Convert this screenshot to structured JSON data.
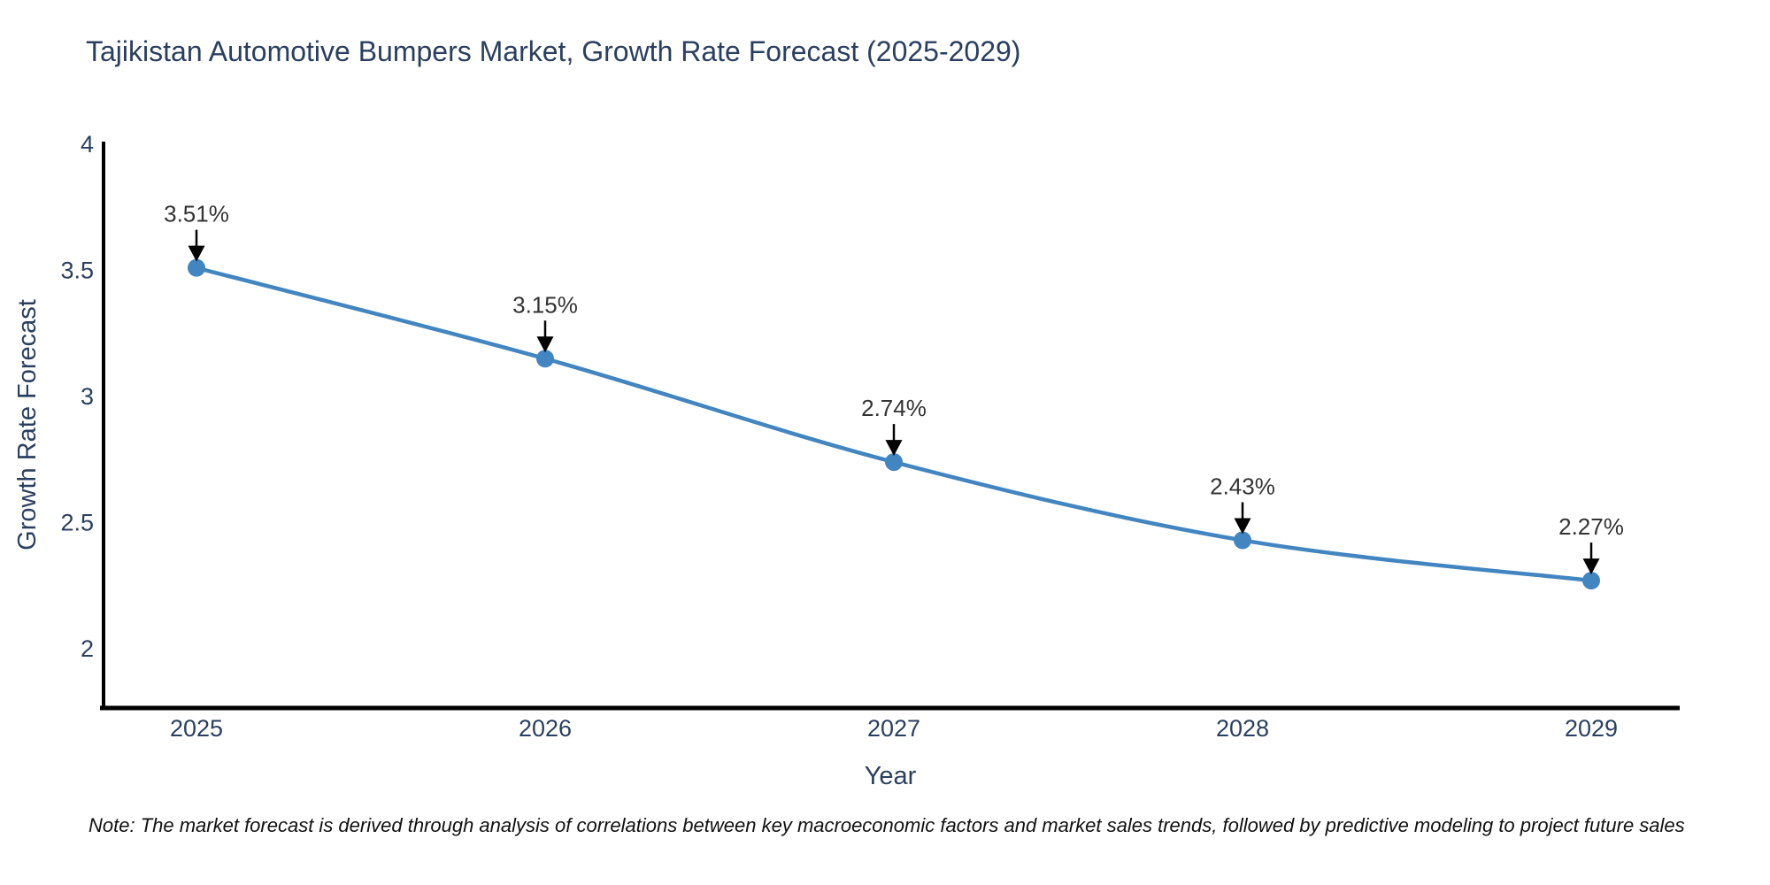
{
  "note": "Note: The market forecast is derived through analysis of correlations between key macroeconomic factors and market sales trends, followed by predictive modeling to project future sales",
  "chart_data": {
    "type": "line",
    "title": "Tajikistan Automotive Bumpers Market, Growth Rate Forecast (2025-2029)",
    "xlabel": "Year",
    "ylabel": "Growth Rate Forecast",
    "categories": [
      "2025",
      "2026",
      "2027",
      "2028",
      "2029"
    ],
    "series": [
      {
        "name": "Growth Rate Forecast",
        "values": [
          3.51,
          3.15,
          2.74,
          2.43,
          2.27
        ]
      }
    ],
    "point_labels": [
      "3.51%",
      "3.15%",
      "2.74%",
      "2.43%",
      "2.27%"
    ],
    "y_ticks": [
      "4",
      "3.5",
      "3",
      "2.5",
      "2"
    ],
    "y_tick_values": [
      4,
      3.5,
      3,
      2.5,
      2
    ],
    "ylim": [
      1.765,
      4.0105
    ],
    "grid": false,
    "legend_position": "none",
    "line_shape": "spline",
    "annotation_arrows": true,
    "colors": {
      "line": "#4285c0",
      "marker": "#4285c0",
      "axis": "#000000",
      "arrow": "#000000",
      "title_text": "#2a3f5f",
      "tick_text": "#2a3f5f",
      "annotation_text": "#333333",
      "note_text": "#111111",
      "background": "#ffffff"
    }
  }
}
